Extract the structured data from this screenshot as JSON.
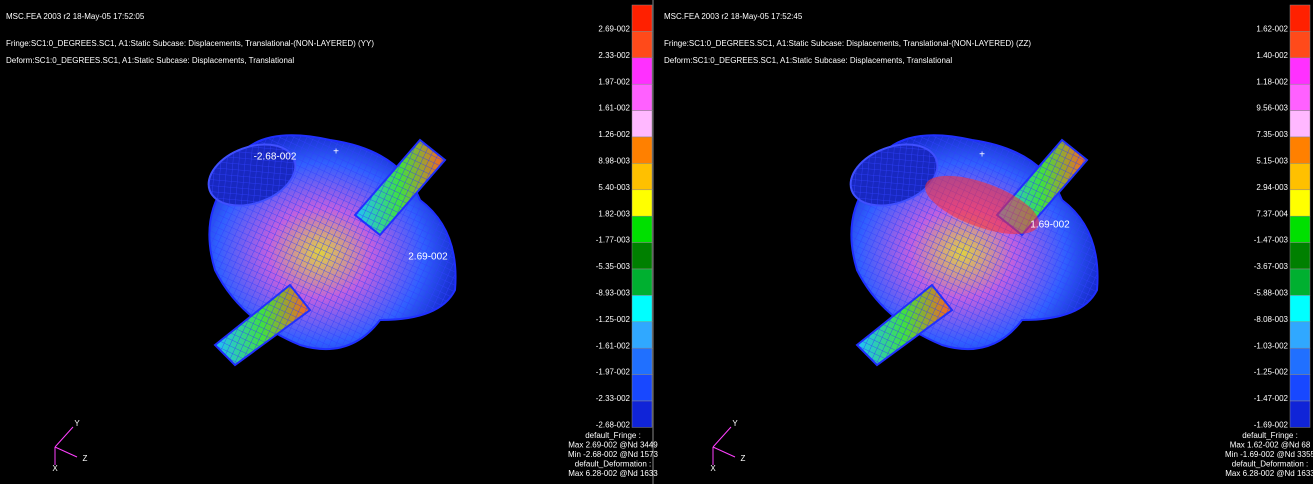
{
  "panels": [
    {
      "header": [
        "MSC.FEA 2003 r2 18-May-05 17:52:05",
        "Fringe:SC1:0_DEGREES.SC1, A1:Static Subcase: Displacements, Translational-(NON-LAYERED) (YY)",
        "Deform:SC1:0_DEGREES.SC1, A1:Static Subcase: Displacements, Translational"
      ],
      "legend": {
        "labels": [
          "2.69-002",
          "2.33-002",
          "1.97-002",
          "1.61-002",
          "1.26-002",
          "8.98-003",
          "5.40-003",
          "1.82-003",
          "-1.77-003",
          "-5.35-003",
          "-8.93-003",
          "-1.25-002",
          "-1.61-002",
          "-1.97-002",
          "-2.33-002",
          "-2.68-002"
        ],
        "colors": [
          "#ff2000",
          "#ff4a1a",
          "#ff30ff",
          "#ff60ff",
          "#ffb8ff",
          "#ff8000",
          "#ffc000",
          "#ffff00",
          "#00e000",
          "#008000",
          "#00b030",
          "#00ffff",
          "#30a8ff",
          "#2070ff",
          "#1848ff",
          "#1024d8"
        ]
      },
      "annotations": [
        "-2.68-002",
        "2.69-002",
        "+"
      ],
      "footer": [
        "default_Fringe :",
        "Max 2.69-002 @Nd 3449",
        "Min -2.68-002 @Nd 1573",
        "default_Deformation :",
        "Max 6.28-002 @Nd 1633"
      ],
      "triad": [
        "Y",
        "Z",
        "X"
      ]
    },
    {
      "header": [
        "MSC.FEA 2003 r2 18-May-05 17:52:45",
        "Fringe:SC1:0_DEGREES.SC1, A1:Static Subcase: Displacements, Translational-(NON-LAYERED) (ZZ)",
        "Deform:SC1:0_DEGREES.SC1, A1:Static Subcase: Displacements, Translational"
      ],
      "legend": {
        "labels": [
          "1.62-002",
          "1.40-002",
          "1.18-002",
          "9.56-003",
          "7.35-003",
          "5.15-003",
          "2.94-003",
          "7.37-004",
          "-1.47-003",
          "-3.67-003",
          "-5.88-003",
          "-8.08-003",
          "-1.03-002",
          "-1.25-002",
          "-1.47-002",
          "-1.69-002"
        ],
        "colors": [
          "#ff2000",
          "#ff4a1a",
          "#ff30ff",
          "#ff60ff",
          "#ffb8ff",
          "#ff8000",
          "#ffc000",
          "#ffff00",
          "#00e000",
          "#008000",
          "#00b030",
          "#00ffff",
          "#30a8ff",
          "#2070ff",
          "#1848ff",
          "#1024d8"
        ]
      },
      "annotations": [
        "1.69-002",
        "+"
      ],
      "footer": [
        "default_Fringe :",
        "Max 1.62-002 @Nd 68",
        "Min -1.69-002 @Nd 3355",
        "default_Deformation :",
        "Max 6.28-002 @Nd 1633"
      ],
      "triad": [
        "Y",
        "Z",
        "X"
      ]
    }
  ]
}
